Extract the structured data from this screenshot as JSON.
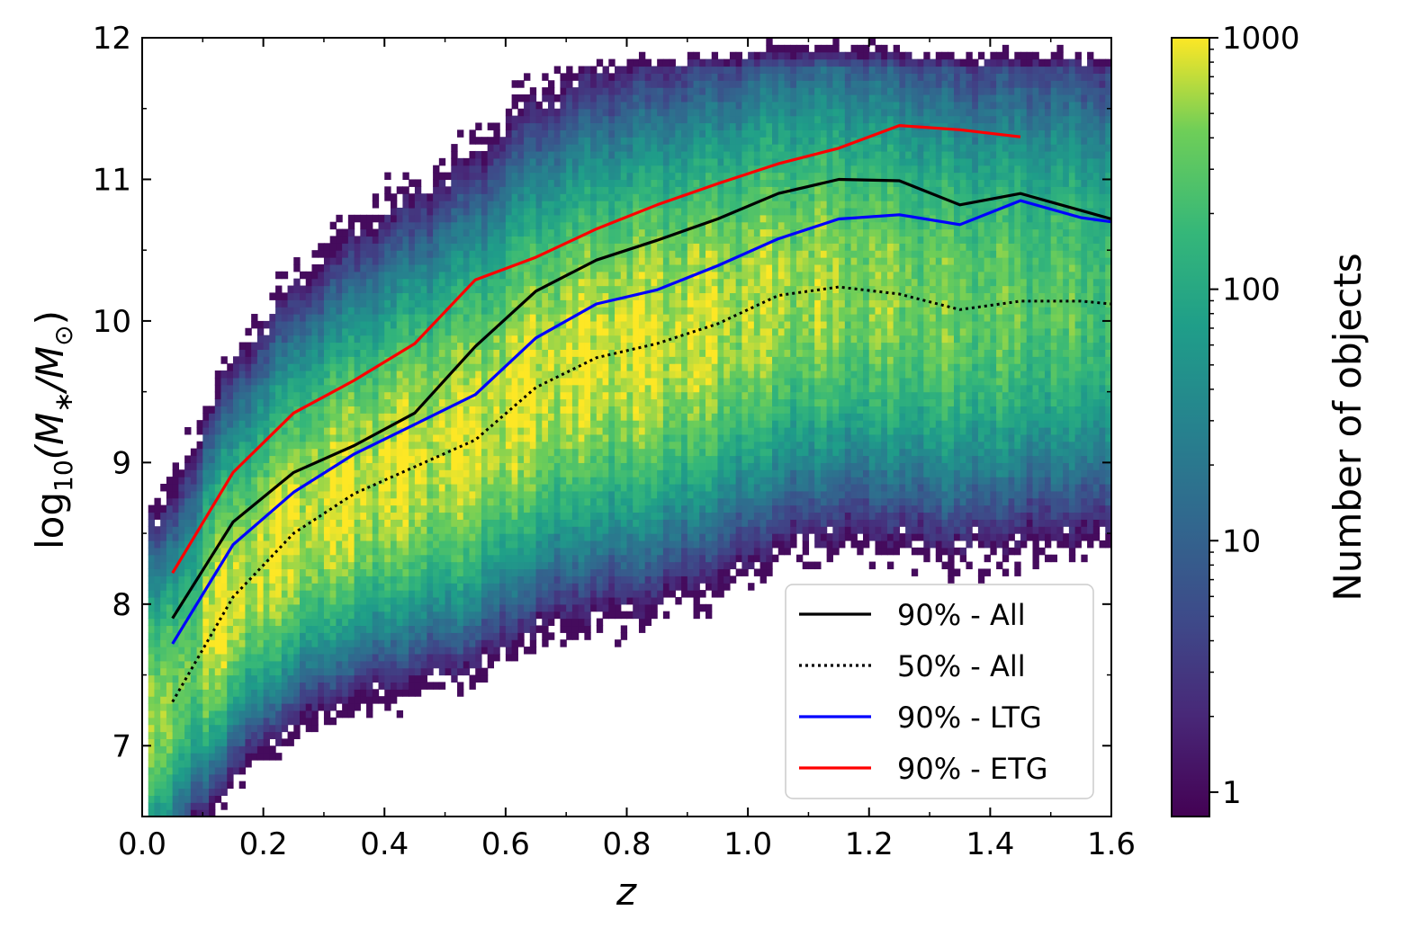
{
  "chart_data": {
    "type": "heatmap",
    "xlabel": "z",
    "ylabel": "log10(M∗/M⊙)",
    "ylabel_parts": {
      "prefix": "log",
      "sub": "10",
      "body": "(M",
      "star": "∗",
      "sep": "/M",
      "odot": "⊙",
      "close": ")"
    },
    "xlim": [
      0.0,
      1.6
    ],
    "ylim": [
      6.5,
      12.0
    ],
    "x_ticks": [
      "0.0",
      "0.2",
      "0.4",
      "0.6",
      "0.8",
      "1.0",
      "1.2",
      "1.4",
      "1.6"
    ],
    "x_tick_values": [
      0.0,
      0.2,
      0.4,
      0.6,
      0.8,
      1.0,
      1.2,
      1.4,
      1.6
    ],
    "y_ticks": [
      "7",
      "8",
      "9",
      "10",
      "11",
      "12"
    ],
    "y_tick_values": [
      7,
      8,
      9,
      10,
      11,
      12
    ],
    "colorbar": {
      "label": "Number of objects",
      "scale": "log",
      "range": [
        0.8,
        1000
      ],
      "ticks": [
        "1",
        "10",
        "100",
        "1000"
      ],
      "tick_values": [
        1,
        10,
        100,
        1000
      ],
      "colormap": "viridis"
    },
    "legend_position": "lower-right",
    "series": [
      {
        "name": "90% - All",
        "color": "#000000",
        "style": "solid",
        "x": [
          0.05,
          0.15,
          0.25,
          0.35,
          0.45,
          0.55,
          0.65,
          0.75,
          0.85,
          0.95,
          1.05,
          1.15,
          1.25,
          1.35,
          1.45,
          1.55,
          1.6
        ],
        "y": [
          7.9,
          8.58,
          8.93,
          9.12,
          9.35,
          9.82,
          10.21,
          10.43,
          10.57,
          10.72,
          10.9,
          11.0,
          10.99,
          10.82,
          10.9,
          10.78,
          10.72
        ]
      },
      {
        "name": "50% - All",
        "color": "#000000",
        "style": "dotted",
        "x": [
          0.05,
          0.15,
          0.25,
          0.35,
          0.45,
          0.55,
          0.65,
          0.75,
          0.85,
          0.95,
          1.05,
          1.15,
          1.25,
          1.35,
          1.45,
          1.55,
          1.6
        ],
        "y": [
          7.31,
          8.05,
          8.5,
          8.78,
          8.97,
          9.16,
          9.53,
          9.74,
          9.84,
          9.98,
          10.18,
          10.24,
          10.19,
          10.08,
          10.14,
          10.14,
          10.12
        ]
      },
      {
        "name": "90% - LTG",
        "color": "#0000ff",
        "style": "solid",
        "x": [
          0.05,
          0.15,
          0.25,
          0.35,
          0.45,
          0.55,
          0.65,
          0.75,
          0.85,
          0.95,
          1.05,
          1.15,
          1.25,
          1.35,
          1.45,
          1.55,
          1.6
        ],
        "y": [
          7.72,
          8.42,
          8.79,
          9.06,
          9.27,
          9.48,
          9.88,
          10.12,
          10.22,
          10.39,
          10.58,
          10.72,
          10.75,
          10.68,
          10.85,
          10.73,
          10.7
        ]
      },
      {
        "name": "90% - ETG",
        "color": "#ff0000",
        "style": "solid",
        "x": [
          0.05,
          0.15,
          0.25,
          0.35,
          0.45,
          0.55,
          0.65,
          0.75,
          0.85,
          0.95,
          1.05,
          1.15,
          1.25,
          1.35,
          1.45
        ],
        "y": [
          8.22,
          8.93,
          9.35,
          9.58,
          9.84,
          10.29,
          10.45,
          10.65,
          10.82,
          10.97,
          11.11,
          11.22,
          11.38,
          11.35,
          11.3
        ]
      }
    ]
  }
}
